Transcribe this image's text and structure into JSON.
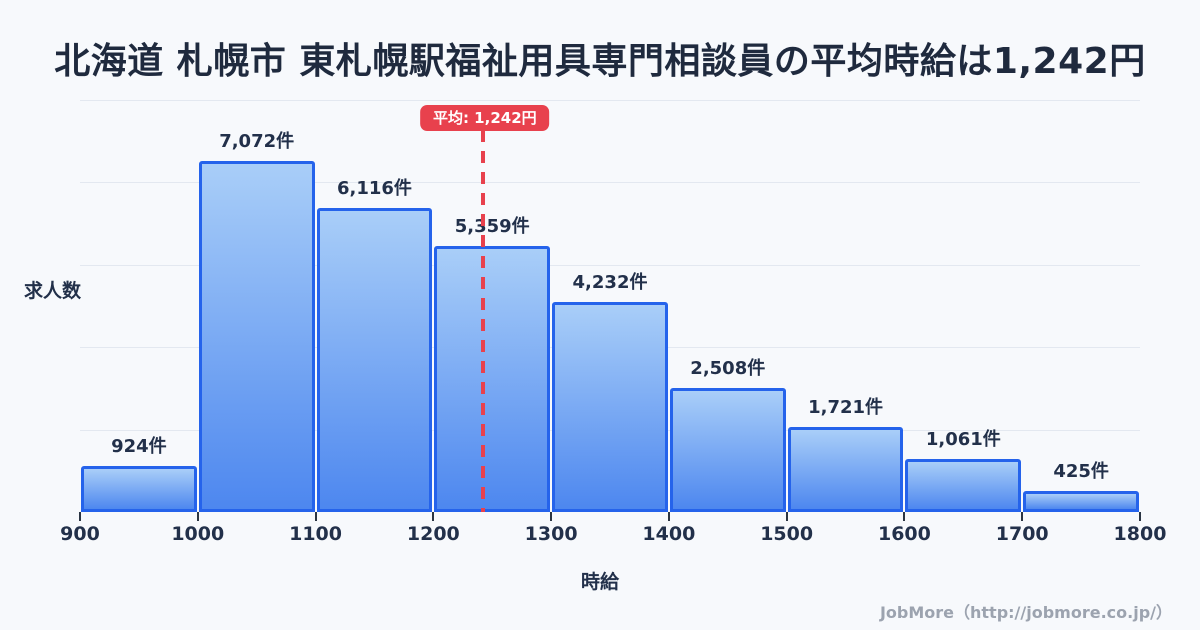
{
  "title": "北海道 札幌市 東札幌駅福祉用具専門相談員の平均時給は1,242円",
  "chart_data": {
    "type": "bar",
    "title": "北海道 札幌市 東札幌駅福祉用具専門相談員の平均時給は1,242円",
    "xlabel": "時給",
    "ylabel": "求人数",
    "bin_edges": [
      900,
      1000,
      1100,
      1200,
      1300,
      1400,
      1500,
      1600,
      1700,
      1800
    ],
    "x_tick_labels": [
      "900",
      "1000",
      "1100",
      "1200",
      "1300",
      "1400",
      "1500",
      "1600",
      "1700",
      "1800"
    ],
    "values": [
      924,
      7072,
      6116,
      5359,
      4232,
      2508,
      1721,
      1061,
      425
    ],
    "value_labels": [
      "924件",
      "7,072件",
      "6,116件",
      "5,359件",
      "4,232件",
      "2,508件",
      "1,721件",
      "1,061件",
      "425件"
    ],
    "average": 1242,
    "average_label": "平均: 1,242円",
    "ylim": [
      0,
      8300
    ],
    "gridline_count": 5,
    "grid": true,
    "legend": false
  },
  "footer": {
    "credit": "JobMore（http://jobmore.co.jp/）"
  },
  "colors": {
    "background": "#F7F9FC",
    "title_text": "#1F2A3E",
    "label_text": "#22304A",
    "gridline": "#E3E8F0",
    "bar_fill_top": "#A9CEF8",
    "bar_fill_bottom": "#4D87EF",
    "bar_border": "#2563EB",
    "average_accent": "#E8414D",
    "footer_text": "#9CA3AF"
  }
}
